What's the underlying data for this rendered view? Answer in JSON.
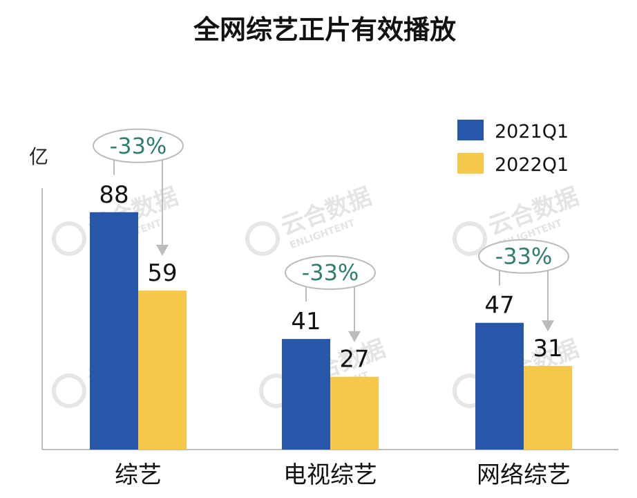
{
  "chart_data": {
    "type": "bar",
    "title": "全网综艺正片有效播放",
    "ylabel": "亿",
    "categories": [
      "综艺",
      "电视综艺",
      "网络综艺"
    ],
    "series": [
      {
        "name": "2021Q1",
        "values": [
          88,
          41,
          47
        ],
        "color": "#2856a8"
      },
      {
        "name": "2022Q1",
        "values": [
          59,
          27,
          31
        ],
        "color": "#f5c84a"
      }
    ],
    "annotations": [
      "-33%",
      "-33%",
      "-33%"
    ],
    "ylim": [
      0,
      100
    ],
    "grid": false,
    "legend_position": "top-right"
  },
  "watermark": {
    "cn": "云合数据",
    "en": "ENLIGHTENT"
  }
}
